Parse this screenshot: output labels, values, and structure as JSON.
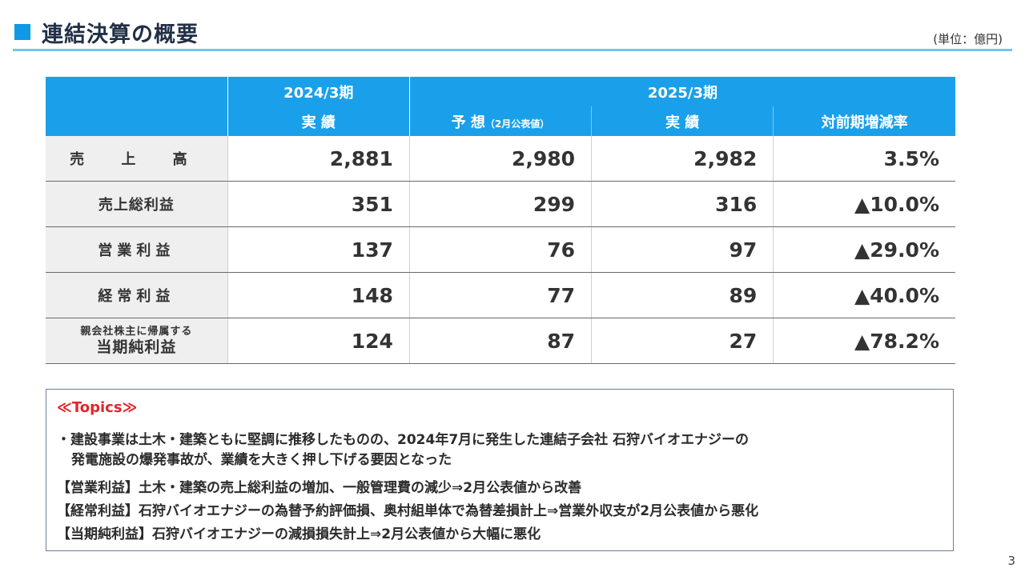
{
  "title": "連結決算の概要",
  "unit": "(単位：億円)",
  "table": {
    "header_top": [
      "",
      "2024/3期",
      "2025/3期"
    ],
    "header_sub": {
      "col1": "実 績",
      "col2_main": "予 想",
      "col2_note": "（2月公表値）",
      "col3": "実 績",
      "col4": "対前期増減率"
    },
    "rows": [
      {
        "label": "売 上 高",
        "v1": "2,881",
        "v2": "2,980",
        "v3": "2,982",
        "v4": "3.5%"
      },
      {
        "label": "売上総利益",
        "v1": "351",
        "v2": "299",
        "v3": "316",
        "v4": "▲10.0%"
      },
      {
        "label": "営業利益",
        "v1": "137",
        "v2": "76",
        "v3": "97",
        "v4": "▲29.0%"
      },
      {
        "label": "経常利益",
        "v1": "148",
        "v2": "77",
        "v3": "89",
        "v4": "▲40.0%"
      },
      {
        "label_top": "親会社株主に帰属する",
        "label_bottom": "当期純利益",
        "v1": "124",
        "v2": "87",
        "v3": "27",
        "v4": "▲78.2%"
      }
    ]
  },
  "topics": {
    "heading": "≪Topics≫",
    "bullet_line1": "・建設事業は土木・建築ともに堅調に推移したものの、2024年7月に発生した連結子会社 石狩バイオエナジーの",
    "bullet_line2": "発電施設の爆発事故が、業績を大きく押し下げる要因となった",
    "item1": "【営業利益】土木・建築の売上総利益の増加、一般管理費の減少⇒2月公表値から改善",
    "item2": "【経常利益】石狩バイオエナジーの為替予約評価損、奥村組単体で為替差損計上⇒営業外収支が2月公表値から悪化",
    "item3": "【当期純利益】石狩バイオエナジーの減損損失計上⇒2月公表値から大幅に悪化"
  },
  "page_number": "3"
}
